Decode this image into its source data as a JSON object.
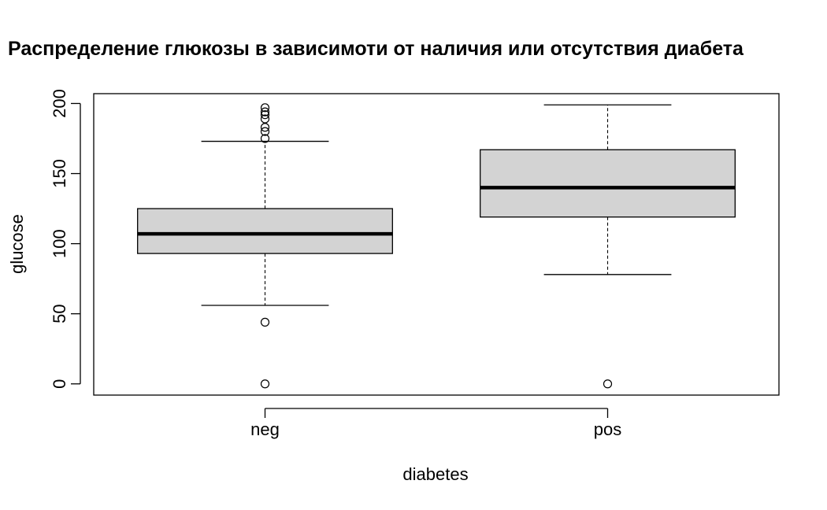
{
  "chart_data": {
    "type": "boxplot",
    "title": "Распределение глюкозы в зависимоти от наличия или отсутствия диабета",
    "xlabel": "diabetes",
    "ylabel": "glucose",
    "ylim": [
      -8,
      207
    ],
    "y_ticks": [
      0,
      50,
      100,
      150,
      200
    ],
    "grid": false,
    "legend": "none",
    "colors": {
      "box_fill": "#d3d3d3",
      "stroke": "#000000",
      "background": "#ffffff"
    },
    "categories": [
      "neg",
      "pos"
    ],
    "boxes": [
      {
        "category": "neg",
        "whisker_low": 56,
        "q1": 93,
        "median": 107,
        "q3": 125,
        "whisker_high": 173,
        "outliers": [
          0,
          44,
          175,
          180,
          183,
          189,
          192,
          194,
          197
        ]
      },
      {
        "category": "pos",
        "whisker_low": 78,
        "q1": 119,
        "median": 140,
        "q3": 167,
        "whisker_high": 199,
        "outliers": [
          0
        ]
      }
    ]
  }
}
